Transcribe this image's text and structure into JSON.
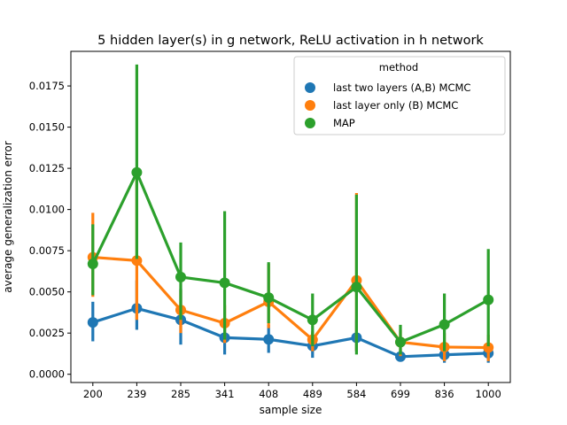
{
  "chart_data": {
    "type": "line",
    "title": "5 hidden layer(s) in g network, ReLU activation in h network",
    "xlabel": "sample size",
    "ylabel": "average generalization error",
    "categories": [
      "200",
      "239",
      "285",
      "341",
      "408",
      "489",
      "584",
      "699",
      "836",
      "1000"
    ],
    "y_ticks": [
      "0.0000",
      "0.0025",
      "0.0050",
      "0.0075",
      "0.0100",
      "0.0125",
      "0.0150",
      "0.0175"
    ],
    "ylim": [
      -0.0005,
      0.0196
    ],
    "grid": false,
    "legend": {
      "title": "method",
      "placement": "top-right"
    },
    "series": [
      {
        "name": "last two layers (A,B) MCMC",
        "color": "#1f77b4",
        "values": [
          0.00315,
          0.004,
          0.0033,
          0.00222,
          0.00212,
          0.00172,
          0.00222,
          0.00107,
          0.00118,
          0.00128
        ],
        "lower": [
          0.002,
          0.0027,
          0.0018,
          0.0012,
          0.0013,
          0.001,
          0.0014,
          0.0008,
          0.0007,
          0.0007
        ],
        "upper": [
          0.0044,
          0.0057,
          0.0052,
          0.0033,
          0.003,
          0.0025,
          0.0033,
          0.0015,
          0.0016,
          0.0018
        ]
      },
      {
        "name": "last layer only (B) MCMC",
        "color": "#ff7f0e",
        "values": [
          0.0071,
          0.0069,
          0.0039,
          0.0031,
          0.0044,
          0.0021,
          0.0057,
          0.00195,
          0.00165,
          0.00162
        ],
        "lower": [
          0.0047,
          0.0033,
          0.0025,
          0.0019,
          0.0028,
          0.0014,
          0.0014,
          0.0011,
          0.0008,
          0.0008
        ],
        "upper": [
          0.0098,
          0.0123,
          0.0051,
          0.0042,
          0.0067,
          0.0026,
          0.011,
          0.0027,
          0.0025,
          0.0024
        ]
      },
      {
        "name": "MAP",
        "color": "#2ca02c",
        "values": [
          0.0067,
          0.01225,
          0.0059,
          0.00555,
          0.00465,
          0.0033,
          0.0053,
          0.00195,
          0.00302,
          0.00452
        ],
        "lower": [
          0.0048,
          0.007,
          0.0033,
          0.0021,
          0.0031,
          0.0017,
          0.0012,
          0.0012,
          0.0014,
          0.0017
        ],
        "upper": [
          0.0091,
          0.0188,
          0.008,
          0.0099,
          0.0068,
          0.0049,
          0.0109,
          0.003,
          0.0049,
          0.0076
        ]
      }
    ]
  }
}
